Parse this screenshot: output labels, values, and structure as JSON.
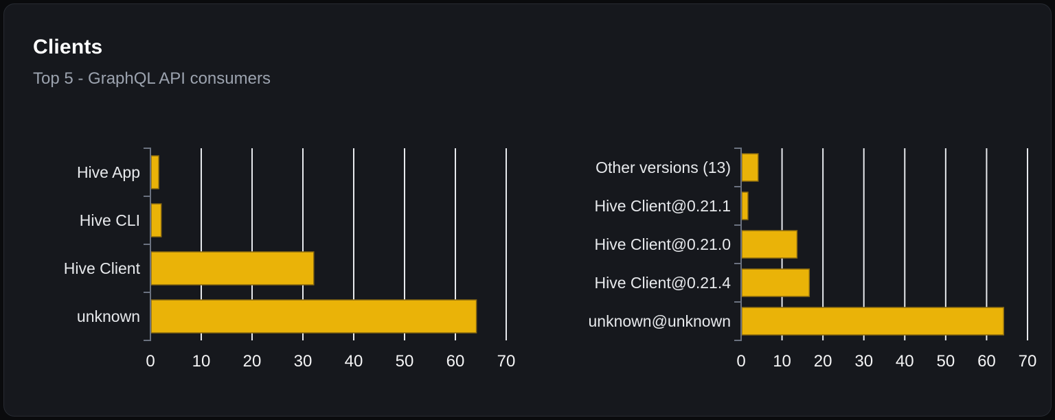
{
  "card": {
    "title": "Clients",
    "subtitle": "Top 5 - GraphQL API consumers"
  },
  "colors": {
    "page_bg": "#0a0b0d",
    "card_bg": "#16181d",
    "card_border": "#272b32",
    "title_text": "#ffffff",
    "subtitle_text": "#9ca3af",
    "bar_fill": "#eab308",
    "bar_border": "#8a6a10",
    "gridline": "#e8eaee",
    "axis_line": "#6b7280",
    "category_text": "#e7e9ec",
    "tick_text": "#f4f4f5"
  },
  "chart_data": [
    {
      "type": "bar",
      "orientation": "horizontal",
      "title": "",
      "xlabel": "",
      "ylabel": "",
      "categories": [
        "Hive App",
        "Hive CLI",
        "Hive Client",
        "unknown"
      ],
      "values": [
        1.5,
        2,
        32,
        64
      ],
      "xlim": [
        0,
        70
      ],
      "xticks": [
        0,
        10,
        20,
        30,
        40,
        50,
        60,
        70
      ],
      "grid": true,
      "legend": false
    },
    {
      "type": "bar",
      "orientation": "horizontal",
      "title": "",
      "xlabel": "",
      "ylabel": "",
      "categories": [
        "Other versions (13)",
        "Hive Client@0.21.1",
        "Hive Client@0.21.0",
        "Hive Client@0.21.4",
        "unknown@unknown"
      ],
      "values": [
        4,
        1.5,
        13.5,
        16.5,
        64
      ],
      "xlim": [
        0,
        70
      ],
      "xticks": [
        0,
        10,
        20,
        30,
        40,
        50,
        60,
        70
      ],
      "grid": true,
      "legend": false
    }
  ]
}
